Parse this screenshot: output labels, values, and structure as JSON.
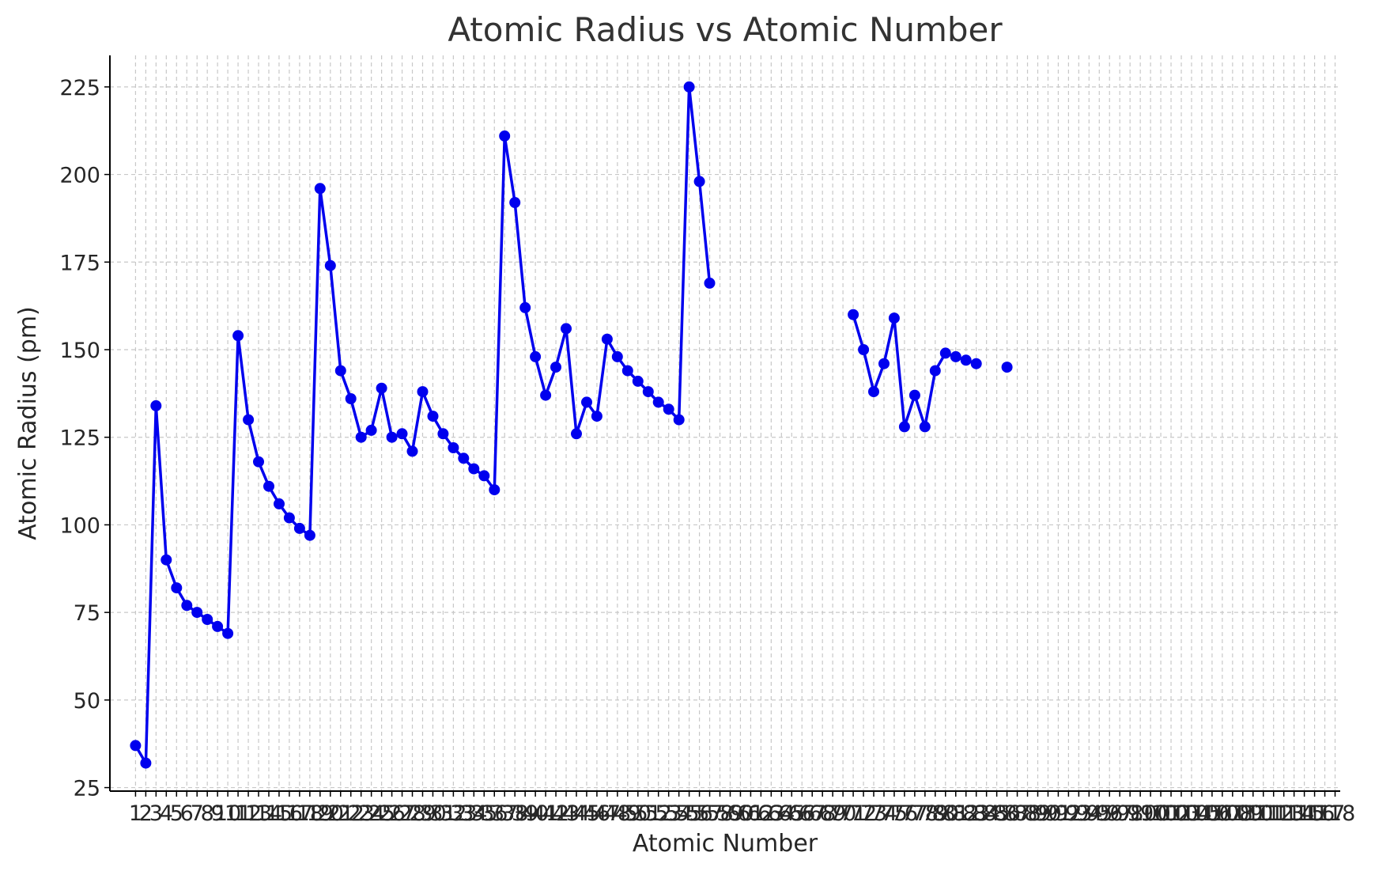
{
  "chart_data": {
    "type": "line",
    "title": "Atomic Radius vs Atomic Number",
    "xlabel": "Atomic Number",
    "ylabel": "Atomic Radius (pm)",
    "xlim": [
      -1.5,
      118.5
    ],
    "ylim": [
      24,
      234
    ],
    "x_ticks": [
      1,
      2,
      3,
      4,
      5,
      6,
      7,
      8,
      9,
      10,
      11,
      12,
      13,
      14,
      15,
      16,
      17,
      18,
      19,
      20,
      21,
      22,
      23,
      24,
      25,
      26,
      27,
      28,
      29,
      30,
      31,
      32,
      33,
      34,
      35,
      36,
      37,
      38,
      39,
      40,
      41,
      42,
      43,
      44,
      45,
      46,
      47,
      48,
      49,
      50,
      51,
      52,
      53,
      54,
      55,
      56,
      57,
      58,
      59,
      60,
      61,
      62,
      63,
      64,
      65,
      66,
      67,
      68,
      69,
      70,
      71,
      72,
      73,
      74,
      75,
      76,
      77,
      78,
      79,
      80,
      81,
      82,
      83,
      84,
      85,
      86,
      87,
      88,
      89,
      90,
      91,
      92,
      93,
      94,
      95,
      96,
      97,
      98,
      99,
      100,
      101,
      102,
      103,
      104,
      105,
      106,
      107,
      108,
      109,
      110,
      111,
      112,
      113,
      114,
      115,
      116,
      117,
      118
    ],
    "y_ticks": [
      25,
      50,
      75,
      100,
      125,
      150,
      175,
      200,
      225
    ],
    "grid": true,
    "color": "#0000ee",
    "series": [
      {
        "x": [
          1,
          2,
          3,
          4,
          5,
          6,
          7,
          8,
          9,
          10,
          11,
          12,
          13,
          14,
          15,
          16,
          17,
          18,
          19,
          20,
          21,
          22,
          23,
          24,
          25,
          26,
          27,
          28,
          29,
          30,
          31,
          32,
          33,
          34,
          35,
          36,
          37,
          38,
          39,
          40,
          41,
          42,
          43,
          44,
          45,
          46,
          47,
          48,
          49,
          50,
          51,
          52,
          53,
          54,
          55,
          56,
          57,
          58,
          59,
          60,
          61,
          62,
          63,
          64,
          65,
          66,
          67,
          68,
          69,
          70,
          71,
          72,
          73,
          74,
          75,
          76,
          77,
          78,
          79,
          80,
          81,
          82,
          83,
          84,
          85,
          86
        ],
        "y": [
          37,
          32,
          134,
          90,
          82,
          77,
          75,
          73,
          71,
          69,
          154,
          130,
          118,
          111,
          106,
          102,
          99,
          97,
          196,
          174,
          144,
          136,
          125,
          127,
          139,
          125,
          126,
          121,
          138,
          131,
          126,
          122,
          119,
          116,
          114,
          110,
          211,
          192,
          162,
          148,
          137,
          145,
          156,
          126,
          135,
          131,
          153,
          148,
          144,
          141,
          138,
          135,
          133,
          130,
          225,
          198,
          169,
          null,
          null,
          null,
          null,
          null,
          null,
          null,
          null,
          null,
          null,
          null,
          null,
          null,
          160,
          150,
          138,
          146,
          159,
          128,
          137,
          128,
          144,
          149,
          148,
          147,
          146,
          null,
          null,
          145
        ]
      }
    ]
  }
}
